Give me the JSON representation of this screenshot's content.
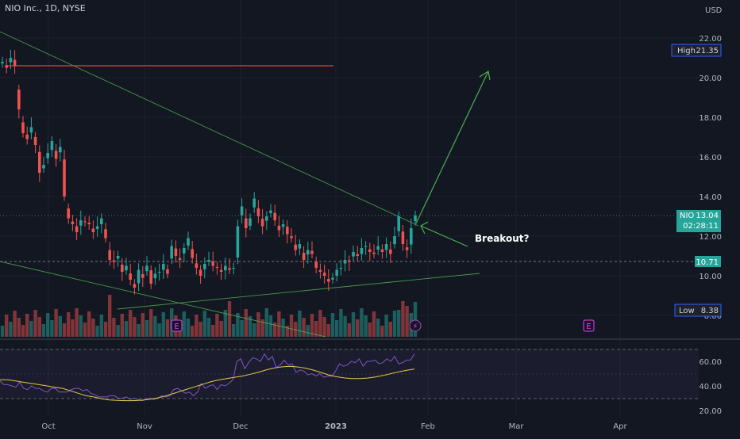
{
  "header": {
    "title": "NIO Inc., 1D, NYSE"
  },
  "price_axis": {
    "currency": "USD"
  },
  "badges": {
    "high": {
      "label": "High",
      "value": "21.35"
    },
    "low": {
      "label": "Low",
      "value": "8.38"
    },
    "symbol": {
      "label": "NIO",
      "value": "13.04",
      "countdown": "02:28:11"
    },
    "level": {
      "value": "10.71"
    }
  },
  "annotation": {
    "text": "Breakout?"
  },
  "events": {
    "earnings_label": "E",
    "dividend_symbol": "⚡"
  },
  "colors": {
    "up": "#26a69a",
    "down": "#ef5350",
    "trendline": "#4caf50",
    "resistance": "#f23645",
    "rsi": "#7e57c2",
    "rsi_ma": "#e6c84a",
    "earnings": "#e040fb",
    "background": "#131722"
  },
  "chart_data": [
    {
      "type": "candlestick",
      "title": "NIO Inc., 1D, NYSE",
      "y_axis": {
        "range": [
          7.6,
          22.8
        ],
        "ticks": [
          "22.00",
          "20.00",
          "18.00",
          "16.00",
          "14.00",
          "12.00",
          "10.00",
          "8.00"
        ],
        "unit": "USD"
      },
      "x_axis": {
        "ticks": [
          "Oct",
          "Nov",
          "Dec",
          "2023",
          "Feb",
          "Mar",
          "Apr"
        ]
      },
      "closes": [
        20.8,
        20.5,
        21.0,
        20.6,
        18.4,
        17.2,
        16.9,
        17.5,
        16.6,
        15.2,
        15.6,
        16.2,
        16.8,
        15.9,
        16.5,
        14.0,
        12.9,
        12.6,
        12.2,
        12.8,
        12.7,
        12.6,
        12.2,
        12.5,
        12.9,
        11.9,
        10.8,
        10.7,
        11.0,
        10.2,
        10.5,
        9.8,
        9.4,
        10.3,
        9.9,
        10.5,
        9.6,
        10.1,
        10.2,
        10.6,
        10.1,
        11.5,
        11.0,
        10.8,
        11.4,
        11.9,
        10.9,
        10.4,
        10.0,
        10.6,
        10.8,
        10.5,
        10.4,
        10.2,
        10.5,
        10.3,
        10.4,
        12.5,
        13.5,
        12.4,
        12.9,
        13.9,
        13.0,
        12.5,
        13.0,
        13.3,
        12.8,
        12.3,
        12.6,
        12.1,
        11.9,
        11.3,
        11.6,
        10.8,
        11.3,
        11.1,
        10.4,
        10.2,
        10.0,
        9.7,
        9.9,
        10.3,
        10.4,
        10.8,
        10.7,
        11.2,
        11.0,
        11.4,
        11.5,
        11.2,
        11.1,
        11.5,
        11.2,
        11.6,
        11.1,
        12.0,
        13.0,
        11.6,
        11.3,
        12.4,
        13.04
      ],
      "high": 21.35,
      "low": 8.38,
      "last": 13.04,
      "horizontal_level": 10.71,
      "resistance_level": 20.6,
      "annotations": [
        "Breakout?"
      ]
    },
    {
      "type": "line",
      "name": "RSI",
      "y_axis": {
        "ticks": [
          "60.00",
          "40.00",
          "20.00"
        ]
      },
      "bands": [
        70,
        30
      ],
      "series": [
        {
          "values": [
            44,
            41,
            41,
            40,
            39,
            43,
            38,
            37,
            40,
            38,
            38,
            36,
            35,
            38,
            38,
            35,
            35,
            35,
            37,
            38,
            38,
            36,
            37,
            34,
            33,
            31,
            31,
            31,
            32,
            32,
            30,
            30,
            31,
            29,
            30,
            29,
            28,
            29,
            30,
            29,
            30,
            32,
            31,
            32,
            37,
            38,
            36,
            34,
            35,
            32,
            35,
            42,
            38,
            40,
            41,
            37,
            41,
            40,
            42,
            45,
            60,
            62,
            54,
            59,
            63,
            62,
            60,
            66,
            61,
            64,
            55,
            57,
            61,
            57,
            58,
            51,
            53,
            52,
            49,
            50,
            48,
            50,
            47,
            48,
            48,
            52,
            58,
            56,
            57,
            60,
            59,
            62,
            56,
            60,
            60,
            61,
            58,
            59,
            62,
            60,
            64,
            58,
            59,
            61,
            61,
            66
          ]
        },
        {
          "values": [
            45,
            45,
            44,
            43,
            42,
            41,
            40,
            39,
            38,
            36,
            34,
            32,
            31,
            29.5,
            28.6,
            28.2,
            28.0,
            28.0,
            28.3,
            29.0,
            30.0,
            31.5,
            33.5,
            35.5,
            37.5,
            39.5,
            41.5,
            43.5,
            44.9,
            46.0,
            47.0,
            48.0,
            49.5,
            51.0,
            53.0,
            54.5,
            55.5,
            56.0,
            55.5,
            54.5,
            53.0,
            51.0,
            49.0,
            47.5,
            46.5,
            46.0,
            46.0,
            46.4,
            47.3,
            48.5,
            50.0,
            51.5,
            52.7,
            53.7
          ]
        }
      ]
    }
  ]
}
